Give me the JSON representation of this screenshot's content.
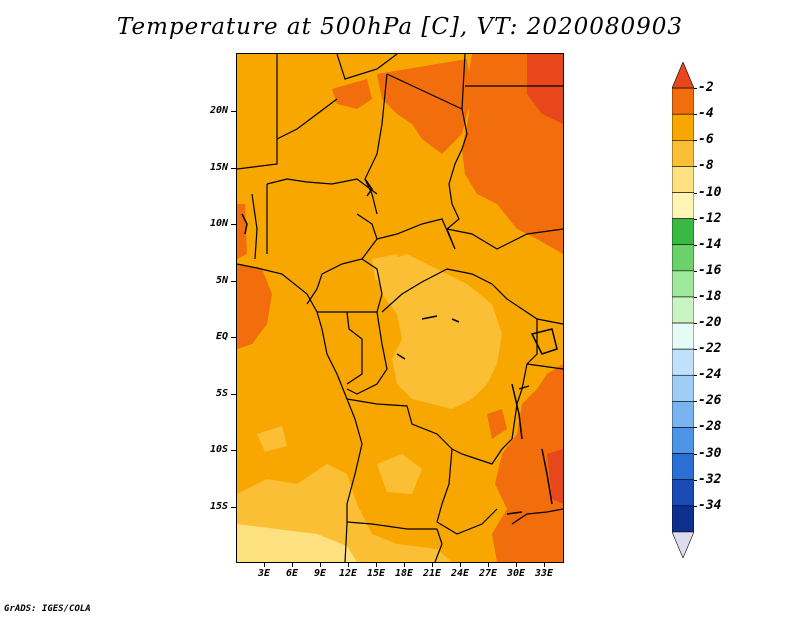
{
  "title": "Temperature at 500hPa [C], VT: 2020080903",
  "credit": "GrADS: IGES/COLA",
  "map": {
    "lat_labels": [
      "20N",
      "15N",
      "10N",
      "5N",
      "EQ",
      "5S",
      "10S",
      "15S"
    ],
    "lon_labels": [
      "3E",
      "6E",
      "9E",
      "12E",
      "15E",
      "18E",
      "21E",
      "24E",
      "27E",
      "30E",
      "33E"
    ]
  },
  "colorbar": {
    "levels": [
      "-2",
      "-4",
      "-6",
      "-8",
      "-10",
      "-12",
      "-14",
      "-16",
      "-18",
      "-20",
      "-22",
      "-24",
      "-26",
      "-28",
      "-30",
      "-32",
      "-34"
    ],
    "colors": [
      "#e8471c",
      "#f26d0c",
      "#f7a700",
      "#fbbf35",
      "#fde080",
      "#fef5b5",
      "#3ab844",
      "#6bd26b",
      "#9de89b",
      "#c9f5c3",
      "#e6fbf5",
      "#bfe1fb",
      "#a0cdf6",
      "#79b4f0",
      "#4d95e6",
      "#2a6fd4",
      "#1a4bb5",
      "#0e2f8e",
      "#ddddee"
    ]
  },
  "colors": {
    "band_minus2_minus4": "#f26d0c",
    "band_minus4_minus6": "#f7a700",
    "band_minus6_minus8": "#fbbf35",
    "band_minus8_minus10": "#fde080"
  }
}
